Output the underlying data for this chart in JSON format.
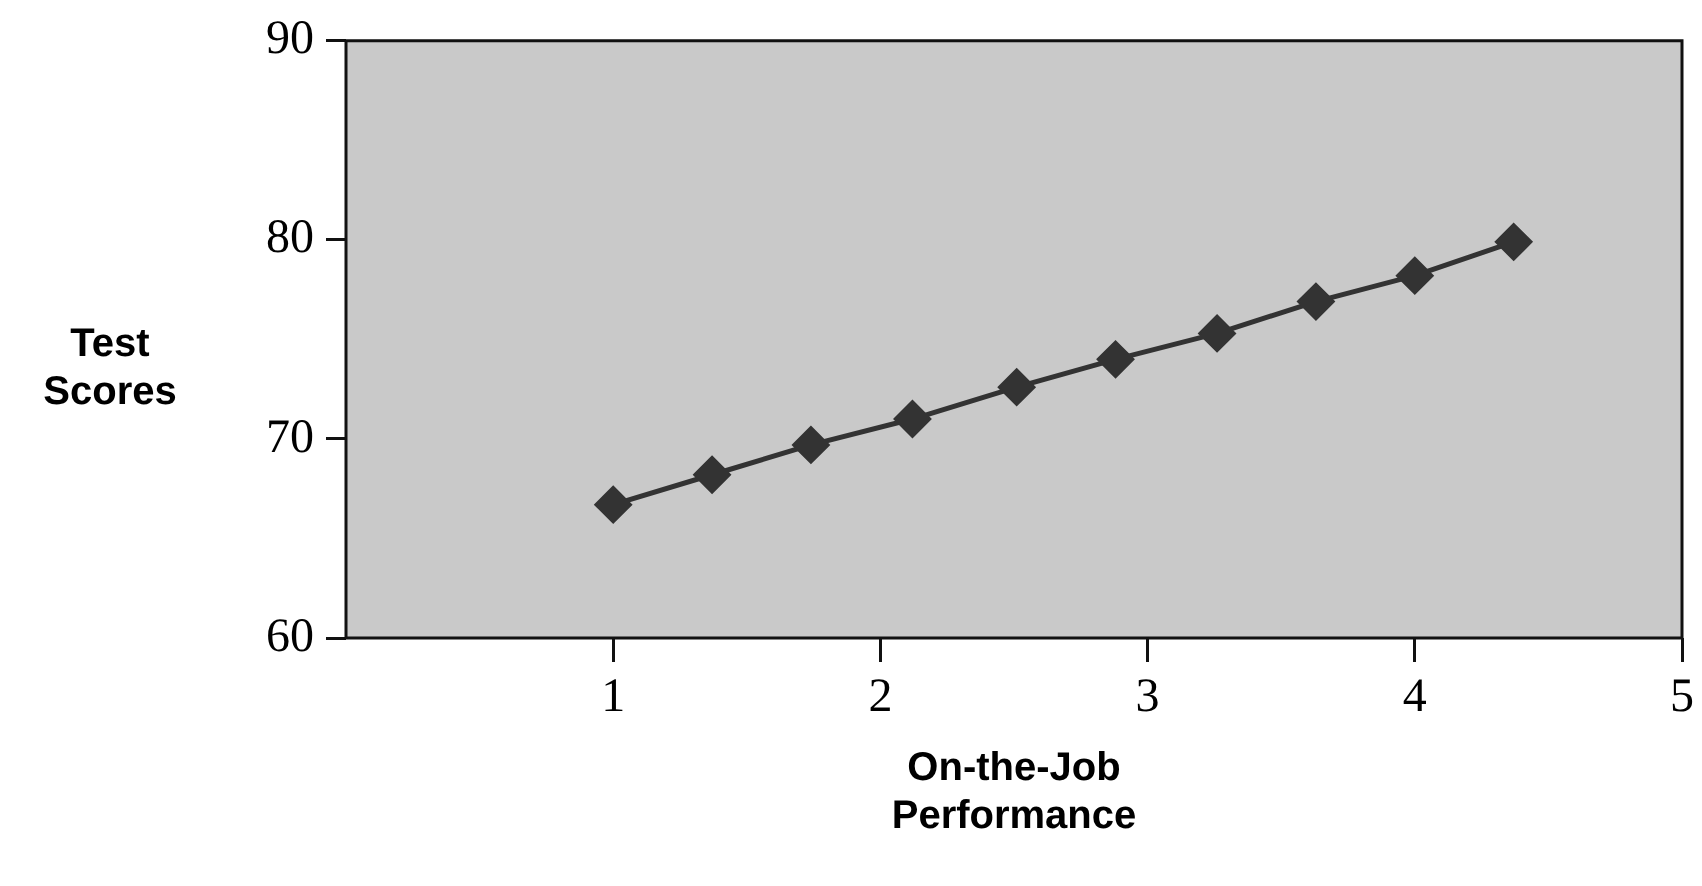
{
  "chart_data": {
    "type": "line",
    "xlabel": "On-the-Job\nPerformance",
    "ylabel": "Test\nScores",
    "xlim": [
      0,
      5
    ],
    "xticks": [
      1,
      2,
      3,
      4,
      5
    ],
    "ylim": [
      60,
      90
    ],
    "yticks": [
      60,
      70,
      80,
      90
    ],
    "marker": "diamond",
    "line_style": "solid",
    "grid": false,
    "legend": false,
    "series": [
      {
        "color": "#333333",
        "x": [
          1,
          1.37,
          1.74,
          2.12,
          2.51,
          2.88,
          3.26,
          3.63,
          4.0,
          4.37
        ],
        "values": [
          66.7,
          68.2,
          69.7,
          71.0,
          72.6,
          74.0,
          75.3,
          76.9,
          78.2,
          79.9
        ]
      }
    ]
  }
}
